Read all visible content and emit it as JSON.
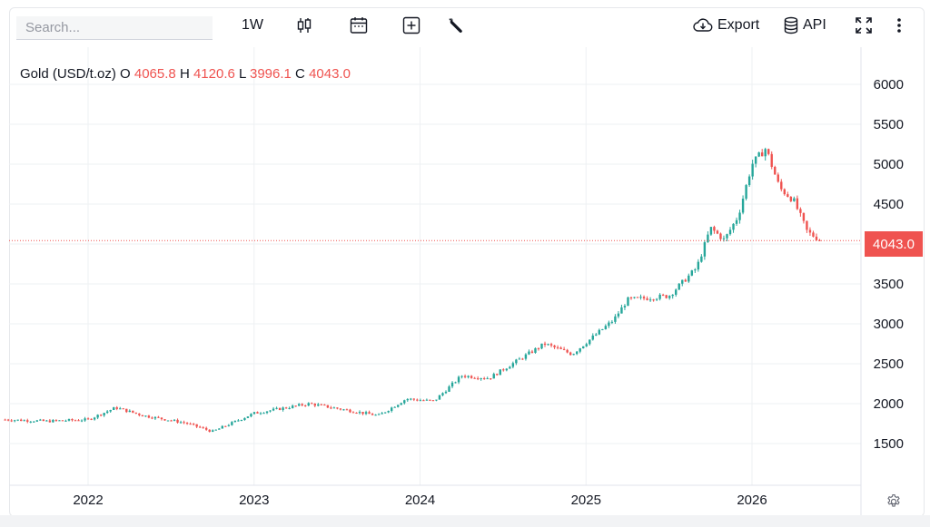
{
  "toolbar": {
    "search_placeholder": "Search...",
    "interval": "1W",
    "export_label": "Export",
    "api_label": "API",
    "icons": [
      "candlestick-icon",
      "calendar-icon",
      "add-indicator-icon",
      "wrench-icon",
      "cloud-download-icon",
      "database-icon",
      "fullscreen-icon",
      "more-vertical-icon"
    ]
  },
  "legend": {
    "symbol": "Gold (USD/t.oz)",
    "o_label": "O",
    "o_value": "4065.8",
    "h_label": "H",
    "h_value": "4120.6",
    "l_label": "L",
    "l_value": "3996.1",
    "c_label": "C",
    "c_value": "4043.0"
  },
  "last_price_label": "4043.0",
  "colors": {
    "up": "#26a69a",
    "down": "#ef5350",
    "grid": "#eef0f3",
    "text": "#131722"
  },
  "chart_data": {
    "type": "candlestick",
    "interval": "1W",
    "title": "Gold (USD/t.oz)",
    "y_ticks": [
      1500,
      2000,
      2500,
      3000,
      3500,
      4000,
      4500,
      5000,
      5500,
      6000
    ],
    "y_tick_labels": [
      "1500",
      "2000",
      "2500",
      "3000",
      "3500",
      "",
      "4500",
      "5000",
      "5500",
      "6000"
    ],
    "ylim": [
      1000,
      6050
    ],
    "x_ticks": [
      "2022",
      "2023",
      "2024",
      "2025",
      "2026"
    ],
    "x_range": [
      "2021-07",
      "2026-09"
    ],
    "grid": true,
    "last_close": 4043.0,
    "approx_close_path": [
      {
        "date": "2021-07",
        "close": 1800
      },
      {
        "date": "2021-10",
        "close": 1780
      },
      {
        "date": "2022-01",
        "close": 1800
      },
      {
        "date": "2022-03",
        "close": 1950
      },
      {
        "date": "2022-05",
        "close": 1850
      },
      {
        "date": "2022-08",
        "close": 1760
      },
      {
        "date": "2022-10",
        "close": 1650
      },
      {
        "date": "2023-01",
        "close": 1880
      },
      {
        "date": "2023-05",
        "close": 2000
      },
      {
        "date": "2023-10",
        "close": 1850
      },
      {
        "date": "2023-12",
        "close": 2060
      },
      {
        "date": "2024-02",
        "close": 2030
      },
      {
        "date": "2024-04",
        "close": 2350
      },
      {
        "date": "2024-06",
        "close": 2320
      },
      {
        "date": "2024-10",
        "close": 2750
      },
      {
        "date": "2024-12",
        "close": 2620
      },
      {
        "date": "2025-03",
        "close": 3050
      },
      {
        "date": "2025-04",
        "close": 3300
      },
      {
        "date": "2025-07",
        "close": 3350
      },
      {
        "date": "2025-09",
        "close": 3700
      },
      {
        "date": "2025-10",
        "close": 4200
      },
      {
        "date": "2025-11",
        "close": 4050
      },
      {
        "date": "2025-12",
        "close": 4350
      },
      {
        "date": "2026-01",
        "close": 5000
      },
      {
        "date": "2026-02",
        "close": 5200
      },
      {
        "date": "2026-03",
        "close": 4700
      },
      {
        "date": "2026-04",
        "close": 4550
      },
      {
        "date": "2026-05",
        "close": 4150
      },
      {
        "date": "2026-06",
        "close": 4043
      }
    ]
  }
}
